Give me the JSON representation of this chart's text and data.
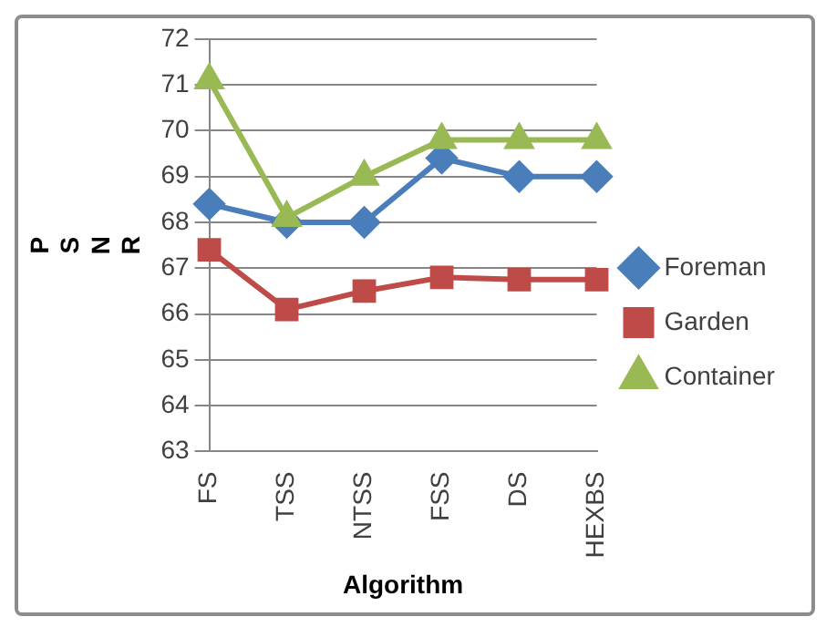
{
  "chart_data": {
    "type": "line",
    "xlabel": "Algorithm",
    "ylabel": "PSNR",
    "categories": [
      "FS",
      "TSS",
      "NTSS",
      "FSS",
      "DS",
      "HEXBS"
    ],
    "series": [
      {
        "name": "Foreman",
        "color": "#4a7ebb",
        "marker": "diamond",
        "values": [
          68.4,
          68.0,
          68.0,
          69.4,
          69.0,
          69.0
        ]
      },
      {
        "name": "Garden",
        "color": "#be4b48",
        "marker": "square",
        "values": [
          67.4,
          66.1,
          66.5,
          66.8,
          66.75,
          66.75
        ]
      },
      {
        "name": "Container",
        "color": "#98b954",
        "marker": "triangle",
        "values": [
          71.1,
          68.1,
          69.0,
          69.8,
          69.8,
          69.8
        ]
      }
    ],
    "ylim": [
      63,
      72
    ],
    "yticks": [
      63,
      64,
      65,
      66,
      67,
      68,
      69,
      70,
      71,
      72
    ],
    "grid": "y",
    "legend": "right"
  }
}
